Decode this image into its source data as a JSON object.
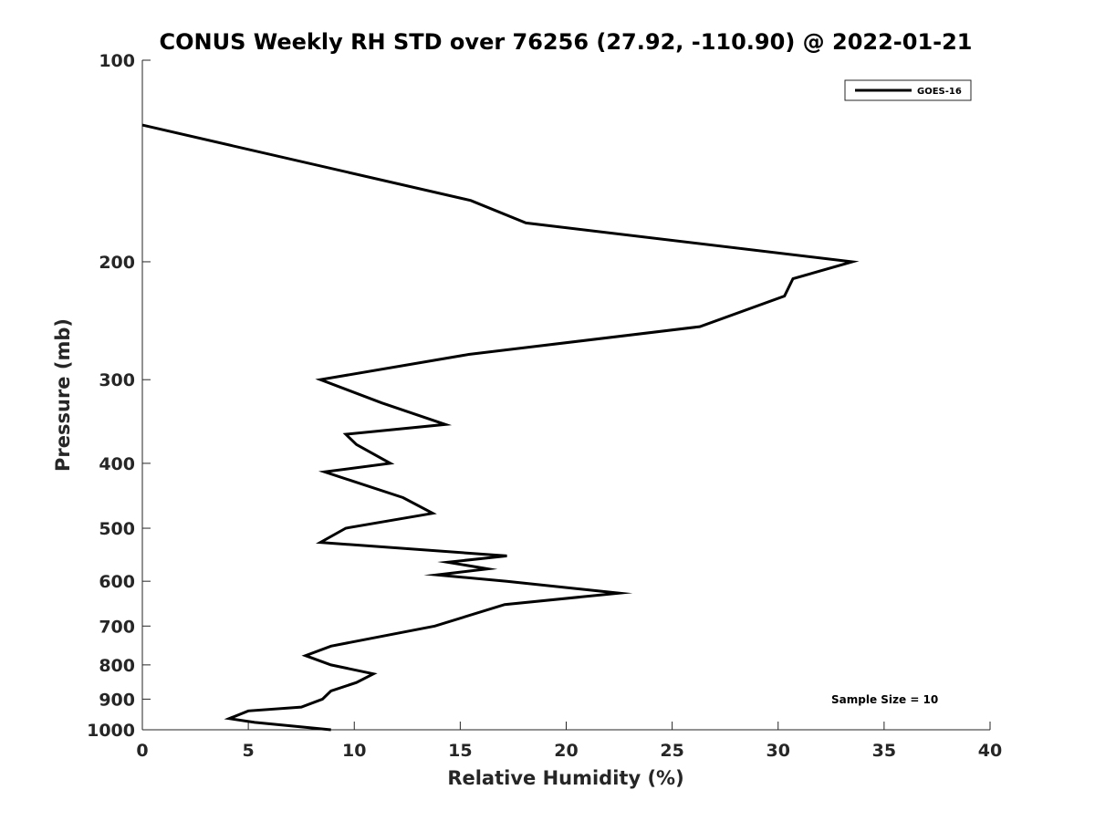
{
  "chart_data": {
    "type": "line",
    "title": "CONUS Weekly RH STD over 76256 (27.92, -110.90) @ 2022-01-21",
    "xlabel": "Relative Humidity (%)",
    "ylabel": "Pressure (mb)",
    "xlim": [
      0,
      40
    ],
    "ylim": [
      100,
      1000
    ],
    "y_scale": "log",
    "y_reversed": true,
    "x_ticks": [
      0,
      5,
      10,
      15,
      20,
      25,
      30,
      35,
      40
    ],
    "y_ticks": [
      100,
      200,
      300,
      400,
      500,
      600,
      700,
      800,
      900,
      1000
    ],
    "grid": false,
    "legend_position": "top-right",
    "series": [
      {
        "name": "GOES-16",
        "color": "#000000",
        "points": [
          {
            "x": 8.9,
            "y": 1000
          },
          {
            "x": 5.3,
            "y": 975
          },
          {
            "x": 4.1,
            "y": 962
          },
          {
            "x": 5.0,
            "y": 937
          },
          {
            "x": 7.5,
            "y": 925
          },
          {
            "x": 8.5,
            "y": 900
          },
          {
            "x": 8.9,
            "y": 875
          },
          {
            "x": 10.1,
            "y": 850
          },
          {
            "x": 10.9,
            "y": 825
          },
          {
            "x": 8.9,
            "y": 800
          },
          {
            "x": 7.7,
            "y": 775
          },
          {
            "x": 8.9,
            "y": 750
          },
          {
            "x": 13.8,
            "y": 700
          },
          {
            "x": 17.1,
            "y": 650
          },
          {
            "x": 22.5,
            "y": 625
          },
          {
            "x": 17.2,
            "y": 600
          },
          {
            "x": 13.9,
            "y": 587
          },
          {
            "x": 16.3,
            "y": 575
          },
          {
            "x": 14.4,
            "y": 562
          },
          {
            "x": 17.2,
            "y": 550
          },
          {
            "x": 8.4,
            "y": 525
          },
          {
            "x": 9.6,
            "y": 500
          },
          {
            "x": 13.7,
            "y": 475
          },
          {
            "x": 12.3,
            "y": 450
          },
          {
            "x": 9.9,
            "y": 425
          },
          {
            "x": 8.6,
            "y": 412
          },
          {
            "x": 11.7,
            "y": 400
          },
          {
            "x": 10.1,
            "y": 375
          },
          {
            "x": 9.6,
            "y": 362
          },
          {
            "x": 14.3,
            "y": 350
          },
          {
            "x": 11.3,
            "y": 325
          },
          {
            "x": 8.4,
            "y": 300
          },
          {
            "x": 15.4,
            "y": 275
          },
          {
            "x": 26.3,
            "y": 250
          },
          {
            "x": 30.3,
            "y": 225
          },
          {
            "x": 30.7,
            "y": 212
          },
          {
            "x": 33.5,
            "y": 200
          },
          {
            "x": 18.1,
            "y": 175
          },
          {
            "x": 15.5,
            "y": 162
          },
          {
            "x": 0.0,
            "y": 125
          }
        ]
      }
    ],
    "annotations": [
      "Sample Size = 10"
    ]
  }
}
